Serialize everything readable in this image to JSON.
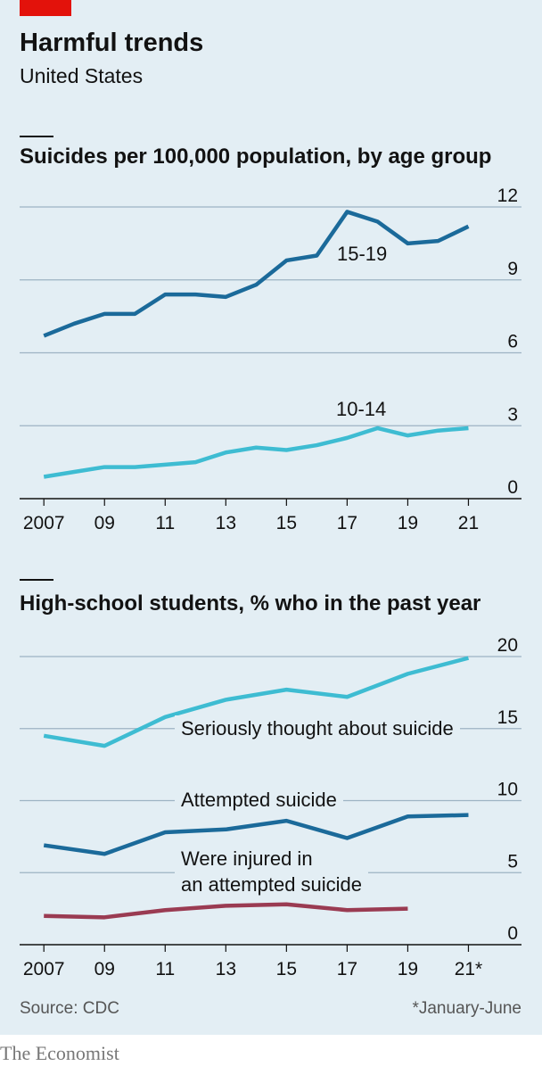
{
  "header": {
    "title": "Harmful trends",
    "subtitle": "United States"
  },
  "source": "Source: CDC",
  "note": "*January-June",
  "brand": "The Economist",
  "chart_data": [
    {
      "type": "line",
      "title": "Suicides per 100,000 population, by age group",
      "x": [
        2007,
        2008,
        2009,
        2010,
        2011,
        2012,
        2013,
        2014,
        2015,
        2016,
        2017,
        2018,
        2019,
        2020,
        2021
      ],
      "series": [
        {
          "name": "15-19",
          "color": "#1b6a9a",
          "values": [
            6.7,
            7.2,
            7.6,
            7.6,
            8.4,
            8.4,
            8.3,
            8.8,
            9.8,
            10.0,
            11.8,
            11.4,
            10.5,
            10.6,
            11.2
          ]
        },
        {
          "name": "10-14",
          "color": "#3ebcd2",
          "values": [
            0.9,
            1.1,
            1.3,
            1.3,
            1.4,
            1.5,
            1.9,
            2.1,
            2.0,
            2.2,
            2.5,
            2.9,
            2.6,
            2.8,
            2.9
          ]
        }
      ],
      "xlim": [
        2006.2,
        2022.75
      ],
      "xticks": [
        {
          "value": 2007,
          "label": "2007"
        },
        {
          "value": 2009,
          "label": "09"
        },
        {
          "value": 2011,
          "label": "11"
        },
        {
          "value": 2013,
          "label": "13"
        },
        {
          "value": 2015,
          "label": "15"
        },
        {
          "value": 2017,
          "label": "17"
        },
        {
          "value": 2019,
          "label": "19"
        },
        {
          "value": 2021,
          "label": "21"
        }
      ],
      "ylim": [
        0,
        12
      ],
      "yticks": [
        0,
        3,
        6,
        9,
        12
      ],
      "grid": true
    },
    {
      "type": "line",
      "title": "High-school students, % who in the past year",
      "x": [
        2007,
        2009,
        2011,
        2013,
        2015,
        2017,
        2019,
        2021
      ],
      "series": [
        {
          "name": "Seriously thought about suicide",
          "color": "#3ebcd2",
          "values": [
            14.5,
            13.8,
            15.8,
            17.0,
            17.7,
            17.2,
            18.8,
            19.9
          ]
        },
        {
          "name": "Attempted suicide",
          "color": "#1b6a9a",
          "values": [
            6.9,
            6.3,
            7.8,
            8.0,
            8.6,
            7.4,
            8.9,
            9.0
          ]
        },
        {
          "name": "Were injured in\nan attempted suicide",
          "color": "#9a3b52",
          "values": [
            2.0,
            1.9,
            2.4,
            2.7,
            2.8,
            2.4,
            2.5,
            null
          ]
        }
      ],
      "xlim": [
        2006.2,
        2022.75
      ],
      "xticks": [
        {
          "value": 2007,
          "label": "2007"
        },
        {
          "value": 2009,
          "label": "09"
        },
        {
          "value": 2011,
          "label": "11"
        },
        {
          "value": 2013,
          "label": "13"
        },
        {
          "value": 2015,
          "label": "15"
        },
        {
          "value": 2017,
          "label": "17"
        },
        {
          "value": 2019,
          "label": "19"
        },
        {
          "value": 2021,
          "label": "21*"
        }
      ],
      "ylim": [
        0,
        20
      ],
      "yticks": [
        0,
        5,
        10,
        15,
        20
      ],
      "grid": true
    }
  ]
}
